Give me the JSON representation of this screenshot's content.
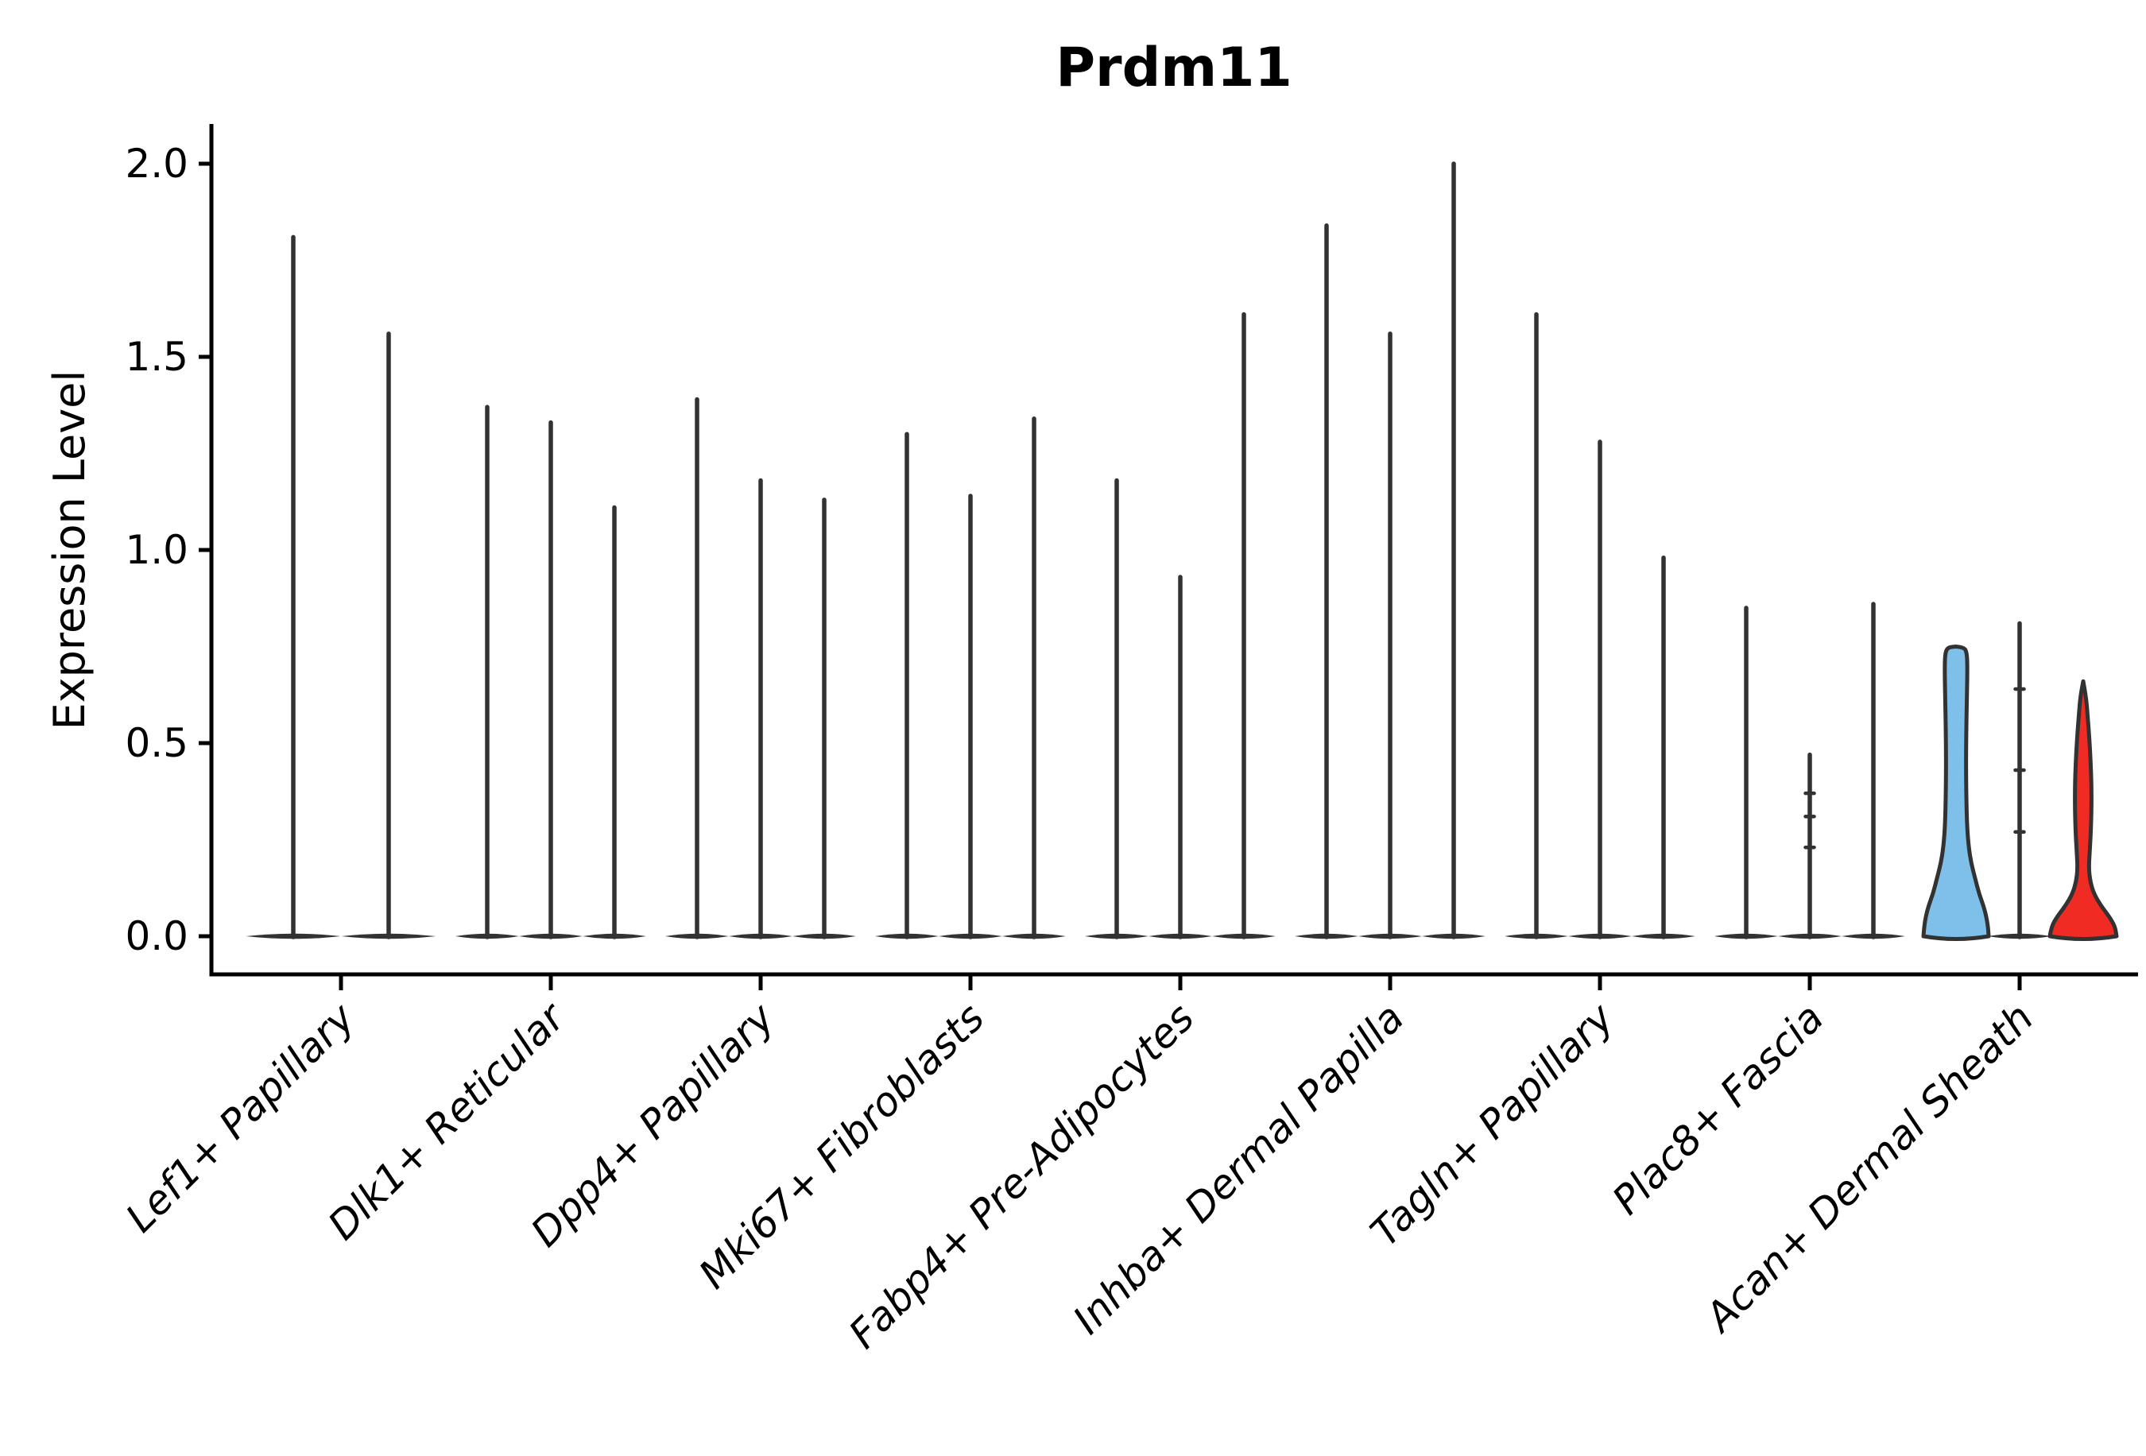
{
  "chart_data": {
    "type": "violin",
    "title": "Prdm11",
    "ylabel": "Expression Level",
    "ylim": [
      -0.1,
      2.1
    ],
    "grid": false,
    "legend": "none",
    "y_ticks": [
      {
        "label": "0.0",
        "value": 0.0
      },
      {
        "label": "0.5",
        "value": 0.5
      },
      {
        "label": "1.0",
        "value": 1.0
      },
      {
        "label": "1.5",
        "value": 1.5
      },
      {
        "label": "2.0",
        "value": 2.0
      }
    ],
    "categories": [
      "Lef1+ Papillary",
      "Dlk1+ Reticular",
      "Dpp4+ Papillary",
      "Mki67+ Fibroblasts",
      "Fabp4+ Pre-Adipocytes",
      "Inhba+ Dermal Papilla",
      "Tagln+ Papillary",
      "Plac8+ Fascia",
      "Acan+ Dermal Sheath"
    ],
    "groups": [
      {
        "category": "Lef1+ Papillary",
        "violins": [
          {
            "style": "spike",
            "max": 1.81
          },
          {
            "style": "spike",
            "max": 1.56
          }
        ]
      },
      {
        "category": "Dlk1+ Reticular",
        "violins": [
          {
            "style": "spike",
            "max": 1.37
          },
          {
            "style": "spike",
            "max": 1.33
          },
          {
            "style": "spike",
            "max": 1.11
          }
        ]
      },
      {
        "category": "Dpp4+ Papillary",
        "violins": [
          {
            "style": "spike",
            "max": 1.39
          },
          {
            "style": "spike",
            "max": 1.18
          },
          {
            "style": "spike",
            "max": 1.13
          }
        ]
      },
      {
        "category": "Mki67+ Fibroblasts",
        "violins": [
          {
            "style": "spike",
            "max": 1.3
          },
          {
            "style": "spike",
            "max": 1.14
          },
          {
            "style": "spike",
            "max": 1.34
          }
        ]
      },
      {
        "category": "Fabp4+ Pre-Adipocytes",
        "violins": [
          {
            "style": "spike",
            "max": 1.18
          },
          {
            "style": "spike",
            "max": 0.93
          },
          {
            "style": "spike",
            "max": 1.61
          }
        ]
      },
      {
        "category": "Inhba+ Dermal Papilla",
        "violins": [
          {
            "style": "spike",
            "max": 1.84
          },
          {
            "style": "spike",
            "max": 1.56
          },
          {
            "style": "spike",
            "max": 2.0
          }
        ]
      },
      {
        "category": "Tagln+ Papillary",
        "violins": [
          {
            "style": "spike",
            "max": 1.61
          },
          {
            "style": "spike",
            "max": 1.28
          },
          {
            "style": "spike",
            "max": 0.98
          }
        ]
      },
      {
        "category": "Plac8+ Fascia",
        "violins": [
          {
            "style": "spike",
            "max": 0.85
          },
          {
            "style": "spike",
            "max": 0.47,
            "nubs": [
              0.37,
              0.31,
              0.23
            ]
          },
          {
            "style": "spike",
            "max": 0.86
          }
        ]
      },
      {
        "category": "Acan+ Dermal Sheath",
        "violins": [
          {
            "style": "flask",
            "max": 0.75,
            "fill": "#7EC0EA",
            "name": "violin-blue",
            "profile": [
              [
                0.0,
                41
              ],
              [
                0.03,
                40
              ],
              [
                0.07,
                36
              ],
              [
                0.11,
                29
              ],
              [
                0.15,
                24
              ],
              [
                0.19,
                19
              ],
              [
                0.23,
                16
              ],
              [
                0.28,
                14
              ],
              [
                0.35,
                13
              ],
              [
                0.45,
                12.5
              ],
              [
                0.55,
                13
              ],
              [
                0.63,
                13.8
              ],
              [
                0.7,
                14.3
              ],
              [
                0.735,
                13.5
              ],
              [
                0.748,
                10
              ],
              [
                0.75,
                0
              ]
            ]
          },
          {
            "style": "spike",
            "max": 0.81,
            "nubs": [
              0.64,
              0.43,
              0.27
            ]
          },
          {
            "style": "flask",
            "max": 0.66,
            "fill": "#F02B24",
            "name": "violin-red",
            "profile": [
              [
                0.0,
                42
              ],
              [
                0.025,
                40
              ],
              [
                0.05,
                33
              ],
              [
                0.08,
                22
              ],
              [
                0.11,
                13.5
              ],
              [
                0.14,
                9
              ],
              [
                0.175,
                7
              ],
              [
                0.22,
                8.2
              ],
              [
                0.27,
                9.6
              ],
              [
                0.33,
                10.4
              ],
              [
                0.39,
                10.4
              ],
              [
                0.45,
                9.4
              ],
              [
                0.51,
                7.8
              ],
              [
                0.57,
                5.6
              ],
              [
                0.62,
                3.6
              ],
              [
                0.66,
                0
              ]
            ]
          }
        ]
      }
    ]
  },
  "colors": {
    "violin_line": "#323232",
    "axis_line": "#000000",
    "highlight_blue": "#7EC0EA",
    "highlight_red": "#F02B24"
  }
}
